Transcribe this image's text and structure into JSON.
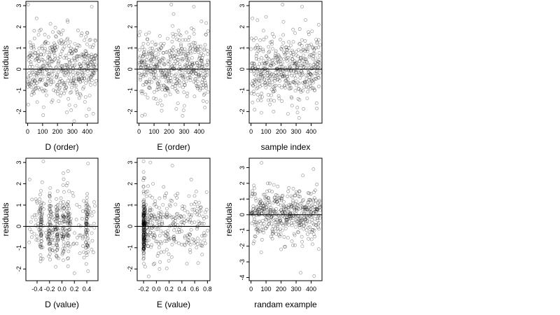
{
  "chart_data": [
    {
      "type": "scatter",
      "xlabel": "D (order)",
      "ylabel": "residuals",
      "xlim": [
        -12,
        472
      ],
      "ylim": [
        -2.55,
        3.2
      ],
      "xticks": [
        0,
        100,
        200,
        300,
        400
      ],
      "yticks": [
        -2,
        -1,
        0,
        1,
        2,
        3
      ],
      "hline": 0,
      "kind": "index",
      "n": 460,
      "seed": 11,
      "extremes": [
        [
          3,
          3.05
        ],
        [
          312,
          -2.45
        ],
        [
          60,
          2.4
        ],
        [
          430,
          2.95
        ],
        [
          440,
          -2.1
        ],
        [
          395,
          -2.2
        ]
      ]
    },
    {
      "type": "scatter",
      "xlabel": "E (order)",
      "ylabel": "residuals",
      "xlim": [
        -12,
        472
      ],
      "ylim": [
        -2.55,
        3.2
      ],
      "xticks": [
        0,
        100,
        200,
        300,
        400
      ],
      "yticks": [
        -2,
        -1,
        0,
        1,
        2,
        3
      ],
      "hline": 0,
      "kind": "index",
      "n": 460,
      "seed": 23,
      "extremes": [
        [
          215,
          3.05
        ],
        [
          365,
          2.95
        ],
        [
          20,
          -2.2
        ],
        [
          40,
          -2.15
        ],
        [
          290,
          -2.2
        ],
        [
          415,
          2.25
        ]
      ]
    },
    {
      "type": "scatter",
      "xlabel": "sample index",
      "ylabel": "residuals",
      "xlim": [
        -12,
        472
      ],
      "ylim": [
        -2.55,
        3.2
      ],
      "xticks": [
        0,
        100,
        200,
        300,
        400
      ],
      "yticks": [
        -2,
        -1,
        0,
        1,
        2,
        3
      ],
      "hline": 0,
      "kind": "index",
      "n": 460,
      "seed": 37,
      "extremes": [
        [
          210,
          3.05
        ],
        [
          340,
          2.95
        ],
        [
          10,
          2.4
        ],
        [
          150,
          -2.0
        ],
        [
          320,
          -2.3
        ],
        [
          450,
          2.1
        ]
      ]
    },
    {
      "type": "scatter",
      "xlabel": "D (value)",
      "ylabel": "residuals",
      "xlim": [
        -0.58,
        0.58
      ],
      "ylim": [
        -2.55,
        3.2
      ],
      "xticks": [
        -0.4,
        -0.2,
        0.0,
        0.2,
        0.4
      ],
      "yticks": [
        -2,
        -1,
        0,
        1,
        2,
        3
      ],
      "hline": 0,
      "kind": "dvalue",
      "n": 430,
      "seed": 51,
      "clusters": [
        -0.34,
        -0.2,
        -0.08,
        0.02,
        0.1,
        0.4
      ],
      "extremes": [
        [
          -0.3,
          3.05
        ],
        [
          0.42,
          2.95
        ],
        [
          -0.52,
          2.2
        ],
        [
          0.2,
          -2.2
        ],
        [
          0.42,
          -2.1
        ],
        [
          -0.1,
          -1.9
        ]
      ]
    },
    {
      "type": "scatter",
      "xlabel": "E (value)",
      "ylabel": "residuals",
      "xlim": [
        -0.3,
        0.84
      ],
      "ylim": [
        -2.55,
        3.2
      ],
      "xticks": [
        -0.2,
        0.0,
        0.2,
        0.4,
        0.6,
        0.8
      ],
      "yticks": [
        -2,
        -1,
        0,
        1,
        2,
        3
      ],
      "hline": 0,
      "kind": "evalue",
      "n": 470,
      "seed": 67,
      "extremes": [
        [
          -0.2,
          3.05
        ],
        [
          0.25,
          2.85
        ],
        [
          -0.12,
          -2.35
        ],
        [
          0.05,
          -2.0
        ],
        [
          0.7,
          0.9
        ],
        [
          0.8,
          -0.2
        ]
      ]
    },
    {
      "type": "scatter",
      "xlabel": "randam example",
      "ylabel": "residuals",
      "xlim": [
        -12,
        472
      ],
      "ylim": [
        -4.2,
        3.6
      ],
      "xticks": [
        0,
        100,
        200,
        300,
        400
      ],
      "yticks": [
        -4,
        -3,
        -2,
        -1,
        0,
        1,
        2,
        3
      ],
      "hline": 0,
      "kind": "index",
      "n": 460,
      "seed": 89,
      "extremes": [
        [
          70,
          3.3
        ],
        [
          330,
          -3.7
        ],
        [
          420,
          -3.9
        ],
        [
          345,
          2.5
        ],
        [
          415,
          2.9
        ],
        [
          200,
          -2.2
        ]
      ]
    }
  ]
}
